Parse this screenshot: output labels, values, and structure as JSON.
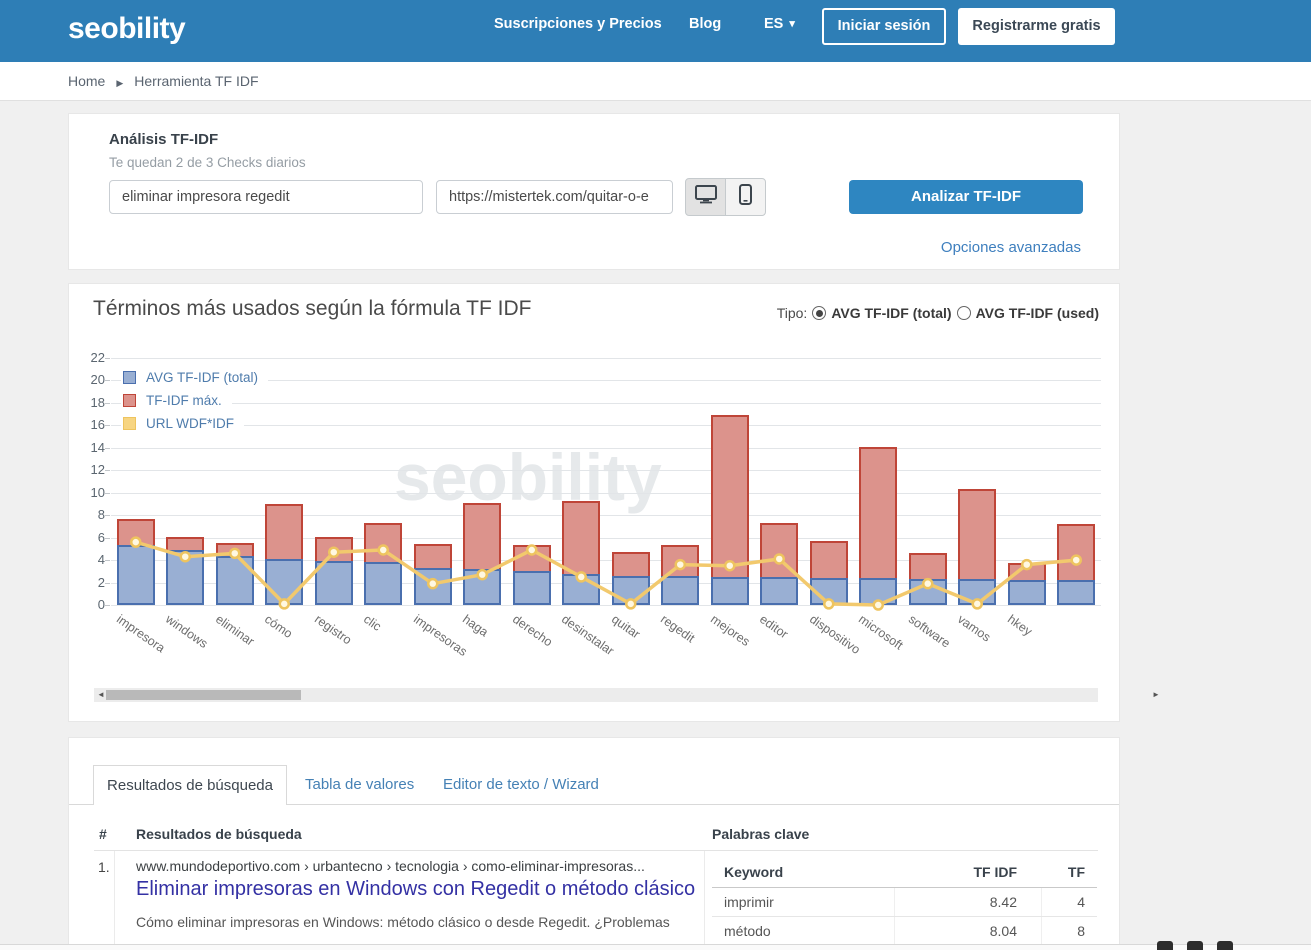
{
  "navbar": {
    "logo": "seobility",
    "links": [
      {
        "label": "Suscripciones y Precios"
      },
      {
        "label": "Blog"
      },
      {
        "label": "ES"
      }
    ],
    "login_button": "Iniciar sesión",
    "register_button": "Registrarme gratis"
  },
  "breadcrumb": {
    "home": "Home",
    "current": "Herramienta TF IDF"
  },
  "analysis": {
    "title": "Análisis TF-IDF",
    "checks_left": "Te quedan 2 de 3 Checks diarios",
    "keyword_value": "eliminar impresora regedit",
    "url_value": "https://mistertek.com/quitar-o-e",
    "analyze_button": "Analizar TF-IDF",
    "advanced_link": "Opciones avanzadas"
  },
  "chart": {
    "title": "Términos más usados según la fórmula TF IDF",
    "type_label": "Tipo:",
    "radio_total": "AVG TF-IDF (total)",
    "radio_used": "AVG TF-IDF (used)",
    "watermark": "seobility"
  },
  "chart_data": {
    "type": "bar",
    "note": "stacked bars with line overlay; TF-IDF máx. values are total bar heights",
    "categories": [
      "impresora",
      "windows",
      "eliminar",
      "cómo",
      "registro",
      "clic",
      "impresoras",
      "haga",
      "derecho",
      "desinstalar",
      "quitar",
      "regedit",
      "mejores",
      "editor",
      "dispositivo",
      "microsoft",
      "software",
      "vamos",
      "hkey",
      ""
    ],
    "series": [
      {
        "name": "AVG TF-IDF (total)",
        "color": "#4a6fae",
        "fill": "#99afd3",
        "values": [
          5.3,
          4.9,
          4.4,
          4.1,
          3.9,
          3.8,
          3.3,
          3.2,
          3.0,
          2.8,
          2.6,
          2.6,
          2.5,
          2.5,
          2.4,
          2.4,
          2.3,
          2.3,
          2.2,
          2.2
        ]
      },
      {
        "name": "TF-IDF máx.",
        "color": "#bf4538",
        "fill": "#dc938c",
        "values": [
          7.7,
          6.1,
          5.5,
          9.0,
          6.1,
          7.3,
          5.4,
          9.1,
          5.3,
          9.3,
          4.7,
          5.3,
          16.9,
          7.3,
          5.7,
          14.1,
          4.6,
          10.3,
          3.7,
          7.2
        ]
      },
      {
        "name": "URL WDF*IDF",
        "color": "#eec45f",
        "fill": "#f7d582",
        "values": [
          5.6,
          4.3,
          4.6,
          0.1,
          4.7,
          4.9,
          1.9,
          2.7,
          4.9,
          2.5,
          0.1,
          3.6,
          3.5,
          4.1,
          0.1,
          0.0,
          1.9,
          0.1,
          3.6,
          4.0
        ]
      }
    ],
    "ylim": [
      0,
      22
    ],
    "ytick_step": 2,
    "grid": true,
    "legend_position": "top-left"
  },
  "tabs": [
    {
      "label": "Resultados de búsqueda",
      "active": true
    },
    {
      "label": "Tabla de valores",
      "active": false
    },
    {
      "label": "Editor de texto / Wizard",
      "active": false
    }
  ],
  "results": {
    "col_num": "#",
    "col_results": "Resultados de búsqueda",
    "col_keywords": "Palabras clave",
    "rows": [
      {
        "num": "1.",
        "url": "www.mundodeportivo.com › urbantecno › tecnologia › como-eliminar-impresoras...",
        "title": "Eliminar impresoras en Windows con Regedit o método clásico",
        "description": "Cómo eliminar impresoras en Windows: método clásico o desde Regedit. ¿Problemas"
      }
    ]
  },
  "keyword_table": {
    "headers": [
      "Keyword",
      "TF IDF",
      "TF"
    ],
    "rows": [
      [
        "imprimir",
        "8.42",
        "4"
      ],
      [
        "método",
        "8.04",
        "8"
      ]
    ]
  },
  "colors": {
    "brand": "#2e7eb6",
    "button": "#2e86c1",
    "link": "#3e7fbe",
    "bar_avg": "#4a6fae",
    "bar_max": "#bf4538",
    "line_wdf": "#eec45f"
  }
}
